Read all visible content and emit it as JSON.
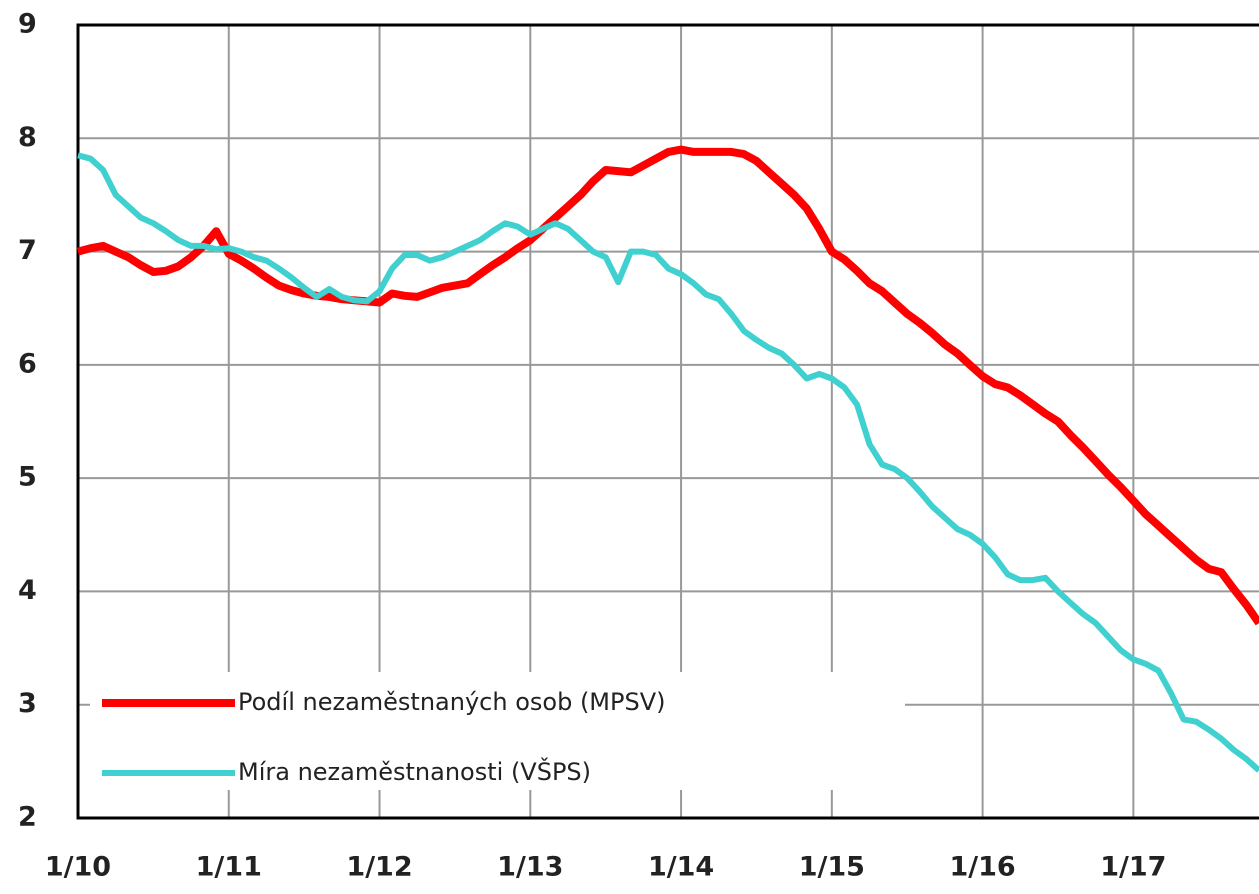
{
  "chart_data": {
    "type": "line",
    "categories": [
      "1/10",
      null,
      null,
      null,
      null,
      null,
      null,
      null,
      null,
      null,
      null,
      null,
      "1/11",
      null,
      null,
      null,
      null,
      null,
      null,
      null,
      null,
      null,
      null,
      null,
      "1/12",
      null,
      null,
      null,
      null,
      null,
      null,
      null,
      null,
      null,
      null,
      null,
      "1/13",
      null,
      null,
      null,
      null,
      null,
      null,
      null,
      null,
      null,
      null,
      null,
      "1/14",
      null,
      null,
      null,
      null,
      null,
      null,
      null,
      null,
      null,
      null,
      null,
      "1/15",
      null,
      null,
      null,
      null,
      null,
      null,
      null,
      null,
      null,
      null,
      null,
      "1/16",
      null,
      null,
      null,
      null,
      null,
      null,
      null,
      null,
      null,
      null,
      null,
      "1/17",
      null,
      null,
      null,
      null,
      null,
      null,
      null,
      null,
      null,
      null
    ],
    "series": [
      {
        "name": "Podíl nezaměstnaných osob (MPSV)",
        "color": "#ff0000",
        "values": [
          7.0,
          7.03,
          7.05,
          7.0,
          6.95,
          6.88,
          6.82,
          6.83,
          6.87,
          6.95,
          7.05,
          7.18,
          6.98,
          6.92,
          6.85,
          6.77,
          6.7,
          6.66,
          6.63,
          6.61,
          6.6,
          6.58,
          6.57,
          6.56,
          6.55,
          6.63,
          6.61,
          6.6,
          6.64,
          6.68,
          6.7,
          6.72,
          6.8,
          6.88,
          6.95,
          7.03,
          7.1,
          7.2,
          7.3,
          7.4,
          7.5,
          7.62,
          7.72,
          7.71,
          7.7,
          7.76,
          7.82,
          7.88,
          7.9,
          7.88,
          7.88,
          7.88,
          7.88,
          7.86,
          7.8,
          7.7,
          7.6,
          7.5,
          7.38,
          7.2,
          7.0,
          6.93,
          6.83,
          6.72,
          6.65,
          6.55,
          6.45,
          6.37,
          6.28,
          6.18,
          6.1,
          6.0,
          5.9,
          5.83,
          5.8,
          5.73,
          5.65,
          5.57,
          5.5,
          5.38,
          5.27,
          5.15,
          5.03,
          4.92,
          4.8,
          4.68,
          4.58,
          4.48,
          4.38,
          4.28,
          4.2,
          4.17,
          4.02,
          3.88,
          3.72
        ]
      },
      {
        "name": "Míra nezaměstnanosti (VŠPS)",
        "color": "#40d0d0",
        "values": [
          7.85,
          7.82,
          7.72,
          7.5,
          7.4,
          7.3,
          7.25,
          7.18,
          7.1,
          7.05,
          7.05,
          7.02,
          7.03,
          7.0,
          6.95,
          6.92,
          6.85,
          6.77,
          6.68,
          6.6,
          6.67,
          6.6,
          6.57,
          6.56,
          6.65,
          6.85,
          6.97,
          6.97,
          6.92,
          6.95,
          7.0,
          7.05,
          7.1,
          7.18,
          7.25,
          7.22,
          7.15,
          7.2,
          7.25,
          7.2,
          7.1,
          7.0,
          6.95,
          6.73,
          7.0,
          7.0,
          6.97,
          6.85,
          6.8,
          6.72,
          6.62,
          6.58,
          6.45,
          6.3,
          6.22,
          6.15,
          6.1,
          6.0,
          5.88,
          5.92,
          5.88,
          5.8,
          5.65,
          5.3,
          5.12,
          5.08,
          5.0,
          4.88,
          4.75,
          4.65,
          4.55,
          4.5,
          4.42,
          4.3,
          4.15,
          4.1,
          4.1,
          4.12,
          4.0,
          3.9,
          3.8,
          3.72,
          3.6,
          3.48,
          3.4,
          3.36,
          3.3,
          3.1,
          2.87,
          2.85,
          2.78,
          2.7,
          2.6,
          2.52,
          2.42
        ]
      }
    ],
    "ylim": [
      2,
      9
    ],
    "yticks": [
      2,
      3,
      4,
      5,
      6,
      7,
      8,
      9
    ],
    "grid": true,
    "legend": "lower left"
  }
}
